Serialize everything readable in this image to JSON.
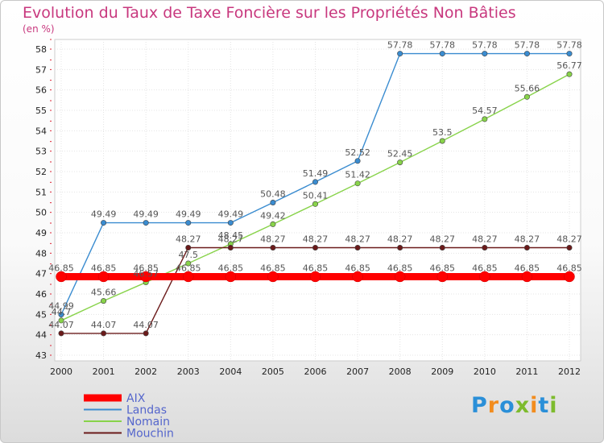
{
  "chart_data": {
    "type": "line",
    "title": "Evolution du Taux de Taxe Foncière sur les Propriétés Non Bâties",
    "ylabel": "(en %)",
    "xlabel": "",
    "ylim": [
      43,
      58
    ],
    "yticks": [
      43,
      44,
      45,
      46,
      47,
      48,
      49,
      50,
      51,
      52,
      53,
      54,
      55,
      56,
      57,
      58
    ],
    "x": [
      "2000",
      "2001",
      "2002",
      "2003",
      "2004",
      "2005",
      "2006",
      "2007",
      "2008",
      "2009",
      "2010",
      "2011",
      "2012"
    ],
    "series": [
      {
        "name": "AIX",
        "color": "#ff0000",
        "values": [
          46.85,
          46.85,
          46.85,
          46.85,
          46.85,
          46.85,
          46.85,
          46.85,
          46.85,
          46.85,
          46.85,
          46.85,
          46.85
        ],
        "labels": [
          "46.85",
          "46.85",
          "46.85",
          "46.85",
          "46.85",
          "46.85",
          "46.85",
          "46.85",
          "46.85",
          "46.85",
          "46.85",
          "46.85",
          "46.85"
        ]
      },
      {
        "name": "Landas",
        "color": "#3a8cd0",
        "values": [
          44.99,
          49.49,
          49.49,
          49.49,
          49.49,
          50.48,
          51.49,
          52.52,
          57.78,
          57.78,
          57.78,
          57.78,
          57.78
        ],
        "labels": [
          "44.99",
          "49.49",
          "49.49",
          "49.49",
          "49.49",
          "50.48",
          "51.49",
          "52.52",
          "57.78",
          "57.78",
          "57.78",
          "57.78",
          "57.78"
        ]
      },
      {
        "name": "Nomain",
        "color": "#88d34a",
        "values": [
          44.7,
          45.66,
          46.57,
          47.5,
          48.45,
          49.42,
          50.41,
          51.42,
          52.45,
          53.5,
          54.57,
          55.66,
          56.77
        ],
        "labels": [
          "44.7",
          "45.66",
          "46.57",
          "47.5",
          "48.45",
          "49.42",
          "50.41",
          "51.42",
          "52.45",
          "53.5",
          "54.57",
          "55.66",
          "56.77"
        ]
      },
      {
        "name": "Mouchin",
        "color": "#6b1a1a",
        "values": [
          44.07,
          44.07,
          44.07,
          48.27,
          48.27,
          48.27,
          48.27,
          48.27,
          48.27,
          48.27,
          48.27,
          48.27,
          48.27
        ],
        "labels": [
          "44.07",
          "44.07",
          "44.07",
          "48.27",
          "48.27",
          "48.27",
          "48.27",
          "48.27",
          "48.27",
          "48.27",
          "48.27",
          "48.27",
          "48.27"
        ]
      }
    ]
  },
  "logo": [
    "P",
    "r",
    "o",
    "x",
    "i",
    "t",
    "i"
  ]
}
